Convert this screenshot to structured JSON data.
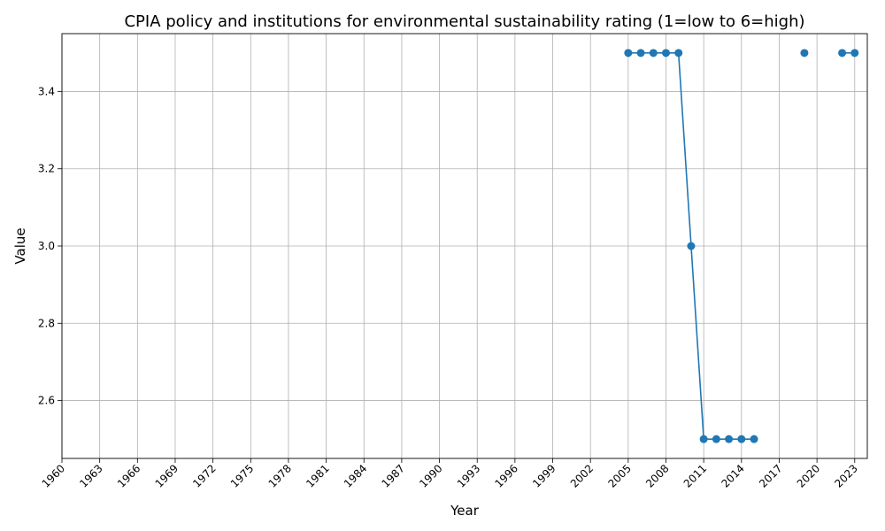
{
  "chart_data": {
    "type": "line",
    "title": "CPIA policy and institutions for environmental sustainability rating (1=low to 6=high)",
    "xlabel": "Year",
    "ylabel": "Value",
    "xlim": [
      1960,
      2024
    ],
    "ylim": [
      2.45,
      3.55
    ],
    "x_ticks": [
      "1960",
      "1963",
      "1966",
      "1969",
      "1972",
      "1975",
      "1978",
      "1981",
      "1984",
      "1987",
      "1990",
      "1993",
      "1996",
      "1999",
      "2002",
      "2005",
      "2008",
      "2011",
      "2014",
      "2017",
      "2020",
      "2023"
    ],
    "y_ticks": [
      "2.6",
      "2.8",
      "3.0",
      "3.2",
      "3.4"
    ],
    "grid": true,
    "color": "#1f77b4",
    "series": [
      {
        "x": [
          2005,
          2006,
          2007,
          2008,
          2009,
          2010,
          2011,
          2012,
          2013,
          2014,
          2015,
          2016,
          2017,
          2018,
          2019,
          2020,
          2021,
          2022,
          2023
        ],
        "y": [
          3.5,
          3.5,
          3.5,
          3.5,
          3.5,
          3.0,
          2.5,
          2.5,
          2.5,
          2.5,
          2.5,
          null,
          null,
          null,
          3.5,
          null,
          null,
          3.5,
          3.5
        ]
      }
    ]
  }
}
